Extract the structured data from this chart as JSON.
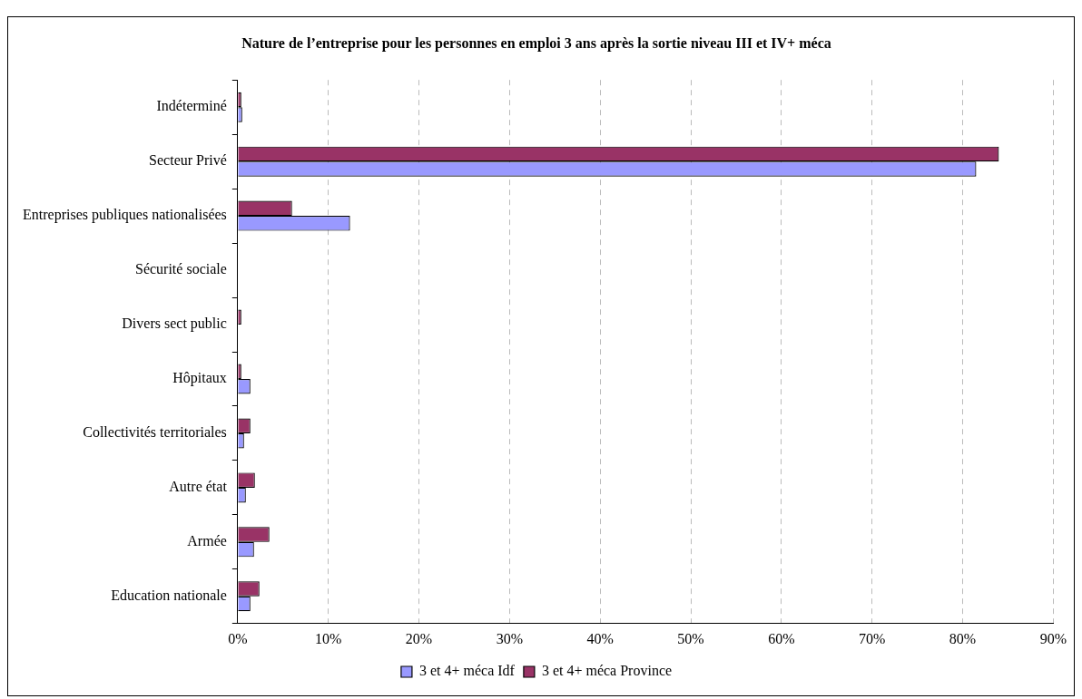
{
  "chart_data": {
    "type": "bar",
    "orientation": "horizontal",
    "title": "Nature de l’entreprise pour les personnes en emploi 3 ans après la sortie niveau III et IV+ méca",
    "categories": [
      "Indéterminé",
      "Secteur Privé",
      "Entreprises publiques nationalisées",
      "Sécurité sociale",
      "Divers sect public",
      "Hôpitaux",
      "Collectivités territoriales",
      "Autre état",
      "Armée",
      "Education nationale"
    ],
    "series": [
      {
        "name": "3 et 4+ méca Idf",
        "color": "#9999ff",
        "values": [
          0.5,
          81.5,
          12.4,
          0,
          0,
          1.4,
          0.7,
          0.9,
          1.8,
          1.4
        ]
      },
      {
        "name": "3 et 4+ méca Province",
        "color": "#993366",
        "values": [
          0.4,
          84,
          6,
          0,
          0.4,
          0.4,
          1.4,
          1.9,
          3.5,
          2.4
        ]
      }
    ],
    "xlim": [
      0,
      90
    ],
    "xticks": [
      {
        "value": 0,
        "label": "0%"
      },
      {
        "value": 10,
        "label": "10%"
      },
      {
        "value": 20,
        "label": "20%"
      },
      {
        "value": 30,
        "label": "30%"
      },
      {
        "value": 40,
        "label": "40%"
      },
      {
        "value": 50,
        "label": "50%"
      },
      {
        "value": 60,
        "label": "60%"
      },
      {
        "value": 70,
        "label": "70%"
      },
      {
        "value": 80,
        "label": "80%"
      },
      {
        "value": 90,
        "label": "90%"
      }
    ],
    "grid": "x",
    "legend": "bottom"
  }
}
